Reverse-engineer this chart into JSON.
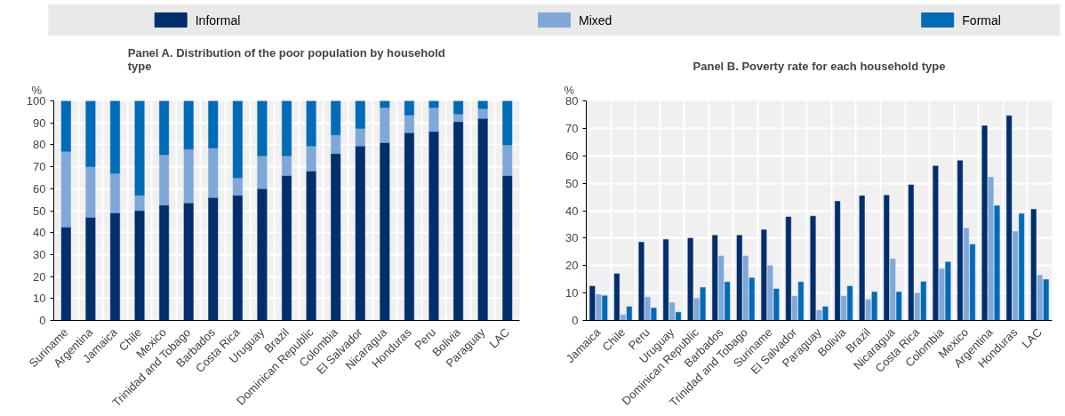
{
  "chart_data": [
    {
      "type": "bar",
      "stacked": true,
      "title": "Panel A. Distribution of the poor population by household type",
      "ylabel": "%",
      "grid": true,
      "legend": "top",
      "categories": [
        "Suriname",
        "Argentina",
        "Jamaica",
        "Chile",
        "Mexico",
        "Trinidad and Tobago",
        "Barbados",
        "Costa Rica",
        "Uruguay",
        "Brazil",
        "Dominican Republic",
        "Colombia",
        "El Salvador",
        "Nicaragua",
        "Honduras",
        "Peru",
        "Bolivia",
        "Paraguay",
        "LAC"
      ],
      "ylim": [
        0,
        100
      ],
      "yticks": [
        0,
        10,
        20,
        30,
        40,
        50,
        60,
        70,
        80,
        90,
        100
      ],
      "series": [
        {
          "name": "Informal",
          "color": "#002f6c",
          "values": [
            42.5,
            47,
            49,
            50,
            52.5,
            53.5,
            56,
            57,
            60,
            66,
            68,
            76,
            79.5,
            81,
            85.5,
            86,
            90.5,
            92,
            66
          ]
        },
        {
          "name": "Mixed",
          "color": "#7fa8d9",
          "values": [
            34.5,
            23,
            18,
            7,
            23,
            24.5,
            22.5,
            8,
            15,
            9,
            11.5,
            8.5,
            8,
            16,
            8,
            11,
            3.5,
            4.5,
            14
          ]
        },
        {
          "name": "Formal",
          "color": "#006bb6",
          "values": [
            23,
            30,
            33,
            43,
            24.5,
            22,
            21.5,
            35,
            25,
            25,
            20.5,
            15.5,
            12.5,
            3,
            6.5,
            3,
            6,
            3.5,
            20
          ]
        }
      ]
    },
    {
      "type": "bar",
      "title": "Panel B. Poverty rate for each household type",
      "ylabel": "%",
      "grid": true,
      "categories": [
        "Jamaica",
        "Chile",
        "Peru",
        "Uruguay",
        "Dominican Republic",
        "Barbados",
        "Trinidad and Tobago",
        "Suriname",
        "El Salvador",
        "Paraguay",
        "Bolivia",
        "Brazil",
        "Nicaragua",
        "Costa Rica",
        "Colombia",
        "Mexico",
        "Argentina",
        "Honduras",
        "LAC"
      ],
      "ylim": [
        0,
        80
      ],
      "yticks": [
        0,
        10,
        20,
        30,
        40,
        50,
        60,
        70,
        80
      ],
      "series": [
        {
          "color": "#002f6c",
          "values": [
            12.5,
            17,
            28.5,
            29.5,
            30,
            31,
            31,
            33,
            37.7,
            38,
            43.4,
            45.4,
            45.6,
            49.4,
            56.3,
            58.2,
            70.9,
            74.6,
            40.5
          ]
        },
        {
          "color": "#7fa8d9",
          "values": [
            9.5,
            2,
            8.5,
            6.5,
            8,
            23.5,
            23.5,
            20,
            8.8,
            3.7,
            8.8,
            7.6,
            22.4,
            10,
            18.8,
            33.6,
            52.2,
            32.4,
            16.4
          ]
        },
        {
          "color": "#006bb6",
          "values": [
            9,
            5,
            4.5,
            3,
            12,
            14,
            15.5,
            11.5,
            14,
            5,
            12.5,
            10.4,
            10.4,
            14.1,
            21.3,
            27.7,
            41.8,
            38.9,
            14.9
          ]
        }
      ]
    }
  ]
}
